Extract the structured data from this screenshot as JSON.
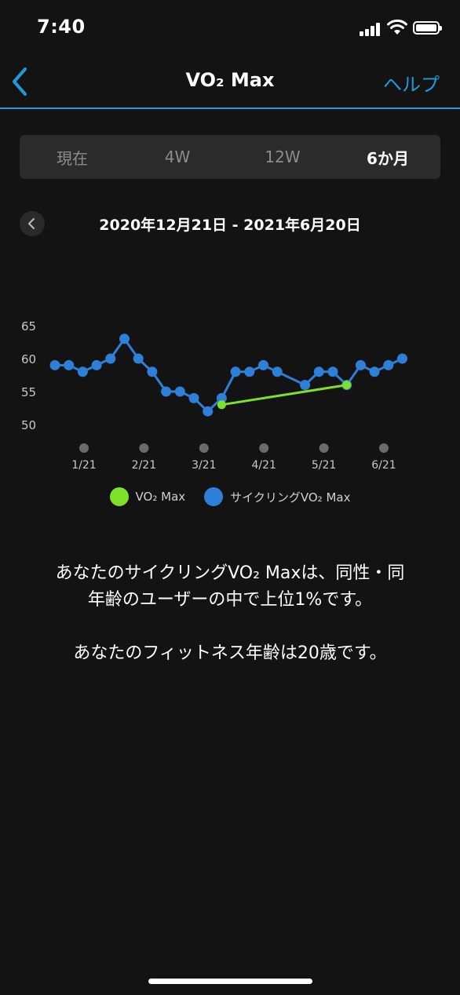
{
  "status_bar": {
    "time": "7:40"
  },
  "nav": {
    "title": "VO₂ Max",
    "help_label": "ヘルプ"
  },
  "tabs": [
    {
      "label": "現在",
      "active": false
    },
    {
      "label": "4W",
      "active": false
    },
    {
      "label": "12W",
      "active": false
    },
    {
      "label": "6か月",
      "active": true
    }
  ],
  "date_range": "2020年12月21日 - 2021年6月20日",
  "chart_data": {
    "type": "line",
    "y_ticks": [
      65,
      60,
      55,
      50
    ],
    "ylim": [
      50,
      65
    ],
    "x_labels": [
      "1/21",
      "2/21",
      "3/21",
      "4/21",
      "5/21",
      "6/21"
    ],
    "series": [
      {
        "name": "サイクリングVO₂ Max",
        "color": "#2e7fd8",
        "values": [
          59,
          59,
          58,
          59,
          60,
          63,
          60,
          58,
          55,
          55,
          54,
          52,
          54,
          58,
          58,
          59,
          58,
          null,
          56,
          58,
          58,
          56,
          59,
          58,
          59,
          60
        ]
      },
      {
        "name": "VO₂ Max",
        "color": "#7fe02a",
        "values": [
          null,
          null,
          null,
          null,
          null,
          null,
          null,
          null,
          null,
          null,
          null,
          null,
          53,
          null,
          null,
          null,
          null,
          null,
          null,
          null,
          null,
          56,
          null,
          null,
          null,
          null
        ]
      }
    ]
  },
  "legend": [
    {
      "label": "VO₂ Max",
      "color": "#7fe02a"
    },
    {
      "label": "サイクリングVO₂ Max",
      "color": "#2e7fd8"
    }
  ],
  "summary": {
    "line1": "あなたのサイクリングVO₂ Maxは、同性・同",
    "line2": "年齢のユーザーの中で上位1%です。",
    "line3": "あなたのフィットネス年齢は20歳です。"
  }
}
